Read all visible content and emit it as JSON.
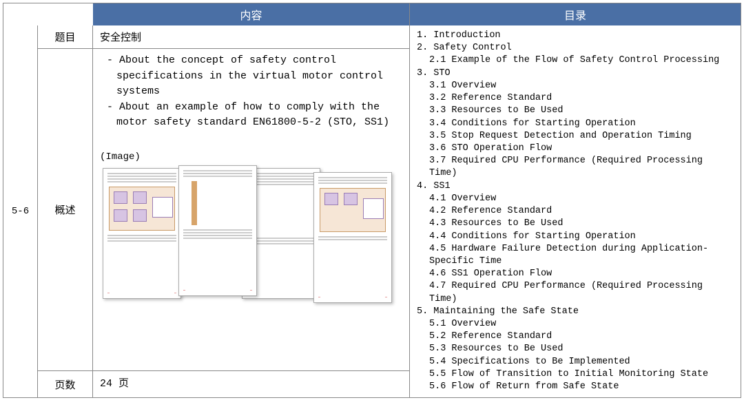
{
  "header": {
    "content": "内容",
    "toc": "目录"
  },
  "row_id": "5-6",
  "labels": {
    "title": "题目",
    "overview": "概述",
    "pages": "页数"
  },
  "content": {
    "title": "安全控制",
    "bullet1": "- About the concept of safety control specifications in the virtual motor control systems",
    "bullet2": "- About an example of how to comply with the motor safety standard EN61800-5-2 (STO, SS1)",
    "image_label": "(Image)",
    "pages": "24 页"
  },
  "toc": {
    "s1": "1. Introduction",
    "s2": "2. Safety Control",
    "s2_1": "2.1  Example of the Flow of Safety Control Processing",
    "s3": "3. STO",
    "s3_1": "3.1  Overview",
    "s3_2": "3.2  Reference Standard",
    "s3_3": "3.3  Resources to Be Used",
    "s3_4": "3.4  Conditions for Starting Operation",
    "s3_5": "3.5  Stop Request Detection and Operation Timing",
    "s3_6": "3.6  STO Operation Flow",
    "s3_7": "3.7  Required CPU Performance (Required Processing Time)",
    "s4": "4. SS1",
    "s4_1": "4.1  Overview",
    "s4_2": "4.2  Reference Standard",
    "s4_3": "4.3  Resources to Be Used",
    "s4_4": "4.4  Conditions for Starting Operation",
    "s4_5": "4.5  Hardware Failure Detection during Application-Specific Time",
    "s4_6": "4.6  SS1 Operation Flow",
    "s4_7": "4.7  Required CPU Performance (Required Processing Time)",
    "s5": "5. Maintaining the Safe State",
    "s5_1": "5.1  Overview",
    "s5_2": "5.2  Reference Standard",
    "s5_3": "5.3  Resources to Be Used",
    "s5_4": "5.4  Specifications to Be Implemented",
    "s5_5": "5.5  Flow of Transition to Initial Monitoring State",
    "s5_6": "5.6  Flow of Return from Safe State"
  },
  "colors": {
    "header_bg": "#4a6fa5",
    "header_fg": "#ffffff",
    "border": "#888888",
    "thumb_accent": "#f6e6d6"
  }
}
